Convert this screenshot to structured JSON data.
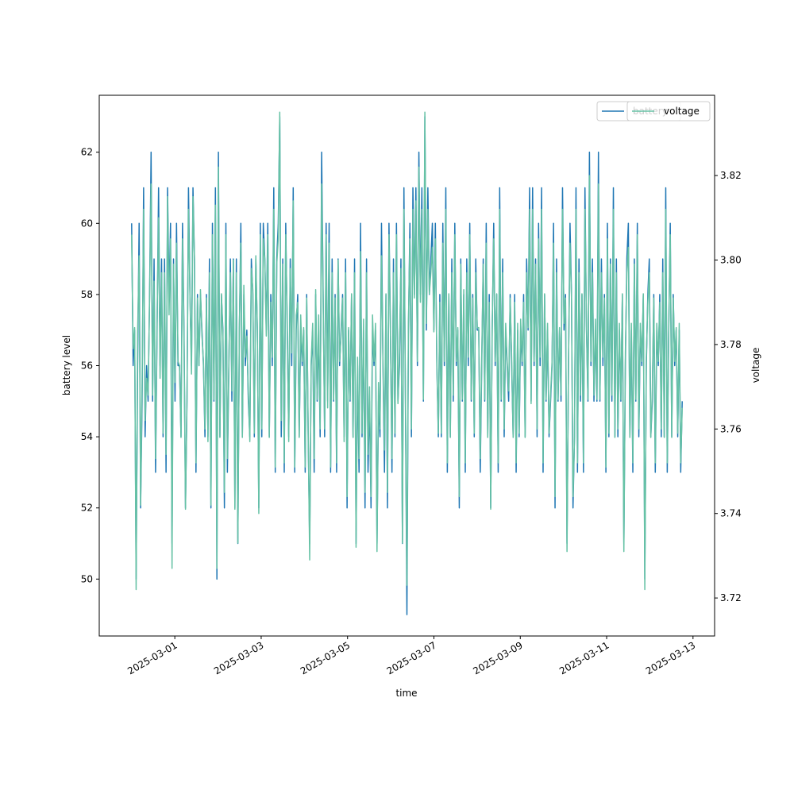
{
  "chart_data": {
    "type": "line",
    "title": "",
    "xlabel": "time",
    "ylabel_left": "battery level",
    "ylabel_right": "voltage",
    "x_start": "2025-02-28T00:00",
    "x_end": "2025-03-12T18:00",
    "xlim": [
      "2025-02-27T06:00",
      "2025-03-13T12:00"
    ],
    "ylim_left": [
      48.4,
      63.6
    ],
    "ylim_right": [
      3.711,
      3.839
    ],
    "x_ticks": [
      "2025-03-01",
      "2025-03-03",
      "2025-03-05",
      "2025-03-07",
      "2025-03-09",
      "2025-03-11",
      "2025-03-13"
    ],
    "y_ticks_left": [
      "50",
      "52",
      "54",
      "56",
      "58",
      "60",
      "62"
    ],
    "y_ticks_right": [
      "3.72",
      "3.74",
      "3.76",
      "3.78",
      "3.80",
      "3.82"
    ],
    "grid": false,
    "legend_placement": "top-right",
    "series": [
      {
        "name": "battery",
        "axis": "left",
        "color": "#1f77b4",
        "values": [
          60,
          56,
          57,
          50,
          56,
          60,
          52,
          55,
          61,
          54,
          56,
          55,
          58,
          62,
          55,
          59,
          53,
          57,
          61,
          56,
          59,
          54,
          59,
          53,
          61,
          58,
          60,
          51,
          59,
          55,
          60,
          56,
          56,
          54,
          60,
          57,
          52,
          55,
          61,
          58,
          56,
          61,
          59,
          53,
          58,
          56,
          58,
          57,
          56,
          54,
          58,
          54,
          59,
          52,
          60,
          55,
          61,
          50,
          62,
          54,
          58,
          57,
          52,
          60,
          53,
          56,
          59,
          55,
          59,
          52,
          59,
          51,
          57,
          60,
          54,
          58,
          56,
          57,
          55,
          54,
          59,
          58,
          54,
          59,
          57,
          52,
          60,
          54,
          60,
          59,
          57,
          60,
          54,
          58,
          56,
          61,
          53,
          59,
          60,
          63,
          54,
          59,
          53,
          60,
          57,
          54,
          59,
          56,
          61,
          53,
          57,
          58,
          54,
          57,
          56,
          57,
          53,
          58,
          54,
          51,
          56,
          57,
          53,
          58,
          55,
          57,
          54,
          62,
          58,
          54,
          60,
          55,
          60,
          53,
          59,
          55,
          58,
          53,
          59,
          56,
          57,
          58,
          54,
          59,
          52,
          57,
          55,
          58,
          54,
          59,
          51,
          56,
          53,
          60,
          54,
          57,
          52,
          59,
          53,
          55,
          52,
          57,
          56,
          57,
          51,
          55,
          54,
          60,
          56,
          53,
          58,
          52,
          60,
          57,
          53,
          59,
          54,
          60,
          55,
          56,
          59,
          51,
          61,
          55,
          49,
          57,
          60,
          54,
          61,
          58,
          61,
          56,
          62,
          58,
          61,
          55,
          63,
          57,
          61,
          58,
          59,
          60,
          57,
          60,
          56,
          54,
          58,
          54,
          60,
          56,
          61,
          53,
          58,
          54,
          59,
          55,
          60,
          56,
          57,
          52,
          59,
          55,
          58,
          53,
          59,
          56,
          60,
          55,
          58,
          54,
          59,
          57,
          57,
          53,
          56,
          59,
          55,
          60,
          54,
          58,
          52,
          57,
          60,
          56,
          58,
          53,
          61,
          55,
          59,
          54,
          57,
          56,
          55,
          58,
          56,
          54,
          58,
          53,
          57,
          54,
          57,
          56,
          58,
          54,
          59,
          57,
          61,
          55,
          61,
          56,
          59,
          54,
          60,
          56,
          61,
          53,
          58,
          55,
          57,
          54,
          55,
          56,
          60,
          52,
          59,
          55,
          57,
          55,
          61,
          57,
          58,
          51,
          56,
          60,
          58,
          52,
          54,
          61,
          53,
          59,
          55,
          58,
          53,
          61,
          57,
          55,
          62,
          56,
          59,
          55,
          57,
          55,
          62,
          55,
          59,
          56,
          58,
          53,
          60,
          54,
          59,
          55,
          61,
          54,
          59,
          54,
          57,
          55,
          58,
          51,
          56,
          59,
          60,
          54,
          57,
          53,
          59,
          55,
          60,
          54,
          57,
          56,
          58,
          50,
          56,
          58,
          59,
          54,
          55,
          58,
          53,
          57,
          56,
          58,
          54,
          59,
          54,
          61,
          53,
          57,
          60,
          54,
          58,
          56,
          57,
          54,
          57,
          53,
          55
        ]
      },
      {
        "name": "voltage",
        "axis": "right",
        "color": "#66c2a5",
        "values": [
          3.806,
          3.779,
          3.784,
          3.722,
          3.783,
          3.801,
          3.742,
          3.771,
          3.812,
          3.762,
          3.772,
          3.768,
          3.791,
          3.818,
          3.768,
          3.795,
          3.753,
          3.786,
          3.81,
          3.772,
          3.797,
          3.759,
          3.797,
          3.754,
          3.815,
          3.787,
          3.805,
          3.727,
          3.799,
          3.771,
          3.804,
          3.776,
          3.775,
          3.758,
          3.805,
          3.781,
          3.741,
          3.768,
          3.812,
          3.791,
          3.773,
          3.815,
          3.8,
          3.752,
          3.791,
          3.775,
          3.793,
          3.782,
          3.776,
          3.76,
          3.791,
          3.757,
          3.797,
          3.742,
          3.806,
          3.767,
          3.813,
          3.727,
          3.822,
          3.758,
          3.792,
          3.782,
          3.745,
          3.806,
          3.753,
          3.776,
          3.797,
          3.769,
          3.8,
          3.741,
          3.797,
          3.733,
          3.784,
          3.804,
          3.758,
          3.794,
          3.777,
          3.782,
          3.769,
          3.757,
          3.798,
          3.793,
          3.759,
          3.801,
          3.784,
          3.74,
          3.806,
          3.76,
          3.805,
          3.8,
          3.782,
          3.806,
          3.758,
          3.79,
          3.777,
          3.812,
          3.751,
          3.799,
          3.805,
          3.835,
          3.762,
          3.799,
          3.752,
          3.806,
          3.786,
          3.757,
          3.798,
          3.778,
          3.814,
          3.751,
          3.787,
          3.79,
          3.758,
          3.787,
          3.776,
          3.784,
          3.751,
          3.791,
          3.76,
          3.729,
          3.776,
          3.785,
          3.753,
          3.793,
          3.767,
          3.787,
          3.76,
          3.818,
          3.79,
          3.76,
          3.806,
          3.765,
          3.804,
          3.751,
          3.797,
          3.767,
          3.791,
          3.752,
          3.8,
          3.776,
          3.782,
          3.791,
          3.757,
          3.797,
          3.744,
          3.784,
          3.767,
          3.792,
          3.758,
          3.797,
          3.732,
          3.777,
          3.753,
          3.802,
          3.759,
          3.786,
          3.745,
          3.797,
          3.754,
          3.77,
          3.744,
          3.787,
          3.776,
          3.785,
          3.731,
          3.771,
          3.76,
          3.801,
          3.776,
          3.755,
          3.792,
          3.745,
          3.806,
          3.782,
          3.753,
          3.797,
          3.759,
          3.806,
          3.766,
          3.778,
          3.798,
          3.733,
          3.812,
          3.769,
          3.723,
          3.785,
          3.805,
          3.76,
          3.812,
          3.791,
          3.814,
          3.776,
          3.822,
          3.79,
          3.812,
          3.767,
          3.835,
          3.785,
          3.812,
          3.792,
          3.797,
          3.803,
          3.783,
          3.805,
          3.776,
          3.759,
          3.79,
          3.759,
          3.804,
          3.776,
          3.812,
          3.752,
          3.792,
          3.758,
          3.797,
          3.768,
          3.806,
          3.776,
          3.784,
          3.744,
          3.799,
          3.767,
          3.793,
          3.752,
          3.797,
          3.777,
          3.806,
          3.767,
          3.791,
          3.759,
          3.797,
          3.784,
          3.784,
          3.753,
          3.777,
          3.799,
          3.767,
          3.804,
          3.758,
          3.79,
          3.741,
          3.785,
          3.805,
          3.776,
          3.792,
          3.752,
          3.812,
          3.767,
          3.797,
          3.76,
          3.785,
          3.776,
          3.769,
          3.791,
          3.777,
          3.758,
          3.79,
          3.752,
          3.785,
          3.759,
          3.786,
          3.776,
          3.79,
          3.758,
          3.797,
          3.784,
          3.812,
          3.766,
          3.812,
          3.776,
          3.799,
          3.76,
          3.805,
          3.777,
          3.812,
          3.752,
          3.792,
          3.767,
          3.785,
          3.759,
          3.768,
          3.776,
          3.804,
          3.744,
          3.797,
          3.767,
          3.784,
          3.768,
          3.812,
          3.785,
          3.791,
          3.731,
          3.776,
          3.804,
          3.791,
          3.744,
          3.758,
          3.812,
          3.752,
          3.797,
          3.768,
          3.792,
          3.752,
          3.812,
          3.785,
          3.767,
          3.82,
          3.776,
          3.797,
          3.768,
          3.786,
          3.767,
          3.818,
          3.767,
          3.797,
          3.777,
          3.791,
          3.751,
          3.805,
          3.759,
          3.799,
          3.768,
          3.812,
          3.758,
          3.797,
          3.76,
          3.785,
          3.767,
          3.792,
          3.731,
          3.778,
          3.797,
          3.803,
          3.758,
          3.785,
          3.752,
          3.799,
          3.767,
          3.806,
          3.76,
          3.785,
          3.776,
          3.792,
          3.722,
          3.777,
          3.79,
          3.797,
          3.758,
          3.769,
          3.791,
          3.752,
          3.785,
          3.776,
          3.79,
          3.76,
          3.797,
          3.758,
          3.812,
          3.752,
          3.785,
          3.806,
          3.758,
          3.791,
          3.776,
          3.784,
          3.759,
          3.785,
          3.752,
          3.765
        ]
      }
    ]
  }
}
